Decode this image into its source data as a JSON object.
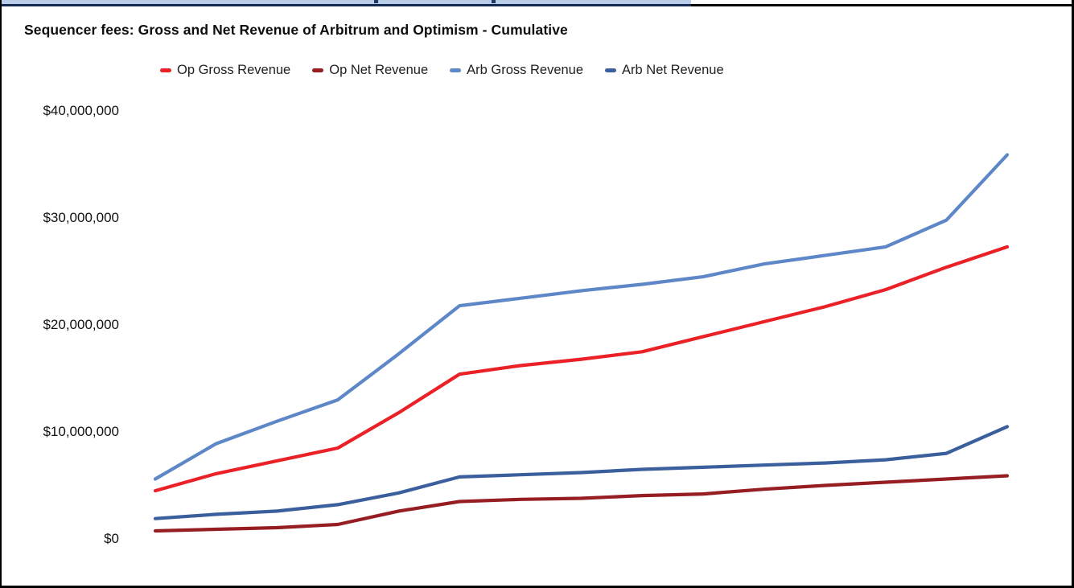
{
  "artifacts": {
    "top_strip_color": "#b9cde9",
    "top_strip_line_color": "#152a50",
    "mark_color": "#1f3864"
  },
  "chart_data": {
    "type": "line",
    "title": "Sequencer fees: Gross and Net Revenue of Arbitrum and Optimism - Cumulative",
    "xlabel": "",
    "ylabel": "",
    "x_labels_visible": false,
    "num_points": 15,
    "ylim": [
      0,
      40000000
    ],
    "grid": false,
    "legend_position": "top",
    "y_ticks": [
      {
        "label": "$40,000,000",
        "value": 40000000
      },
      {
        "label": "$30,000,000",
        "value": 30000000
      },
      {
        "label": "$20,000,000",
        "value": 20000000
      },
      {
        "label": "$10,000,000",
        "value": 10000000
      },
      {
        "label": "$0",
        "value": 0
      }
    ],
    "series": [
      {
        "name": "Op Gross Revenue",
        "color": "#ea2228",
        "values": [
          4500000,
          6100000,
          7300000,
          8500000,
          11800000,
          15400000,
          16200000,
          16800000,
          17500000,
          18900000,
          20300000,
          21700000,
          23300000,
          25400000,
          27300000
        ]
      },
      {
        "name": "Op Net Revenue",
        "color": "#961d22",
        "values": [
          750000,
          900000,
          1050000,
          1350000,
          2600000,
          3500000,
          3700000,
          3800000,
          4050000,
          4200000,
          4650000,
          5000000,
          5300000,
          5600000,
          5900000
        ]
      },
      {
        "name": "Arb Gross Revenue",
        "color": "#5e87c8",
        "values": [
          5600000,
          8900000,
          11000000,
          13000000,
          17300000,
          21800000,
          22500000,
          23200000,
          23800000,
          24500000,
          25700000,
          26500000,
          27300000,
          29800000,
          35900000
        ]
      },
      {
        "name": "Arb Net Revenue",
        "color": "#3a5f9c",
        "values": [
          1900000,
          2300000,
          2600000,
          3200000,
          4300000,
          5800000,
          6000000,
          6200000,
          6500000,
          6700000,
          6900000,
          7100000,
          7400000,
          8000000,
          10500000
        ]
      }
    ]
  }
}
